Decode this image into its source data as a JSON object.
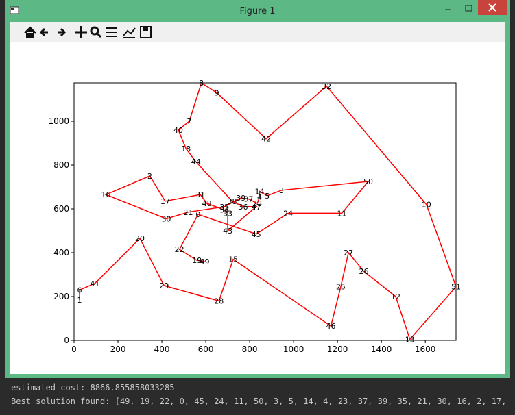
{
  "window": {
    "title": "Figure 1"
  },
  "chart_data": {
    "type": "line",
    "color": "#ff0000",
    "x": [
      595,
      560,
      480,
      565,
      830,
      975,
      1220,
      1340,
      945,
      880,
      845,
      845,
      835,
      795,
      760,
      685,
      520,
      420,
      145,
      345,
      415,
      575,
      605,
      685,
      700,
      700,
      830,
      770,
      720,
      555,
      510,
      475,
      525,
      580,
      650,
      875,
      1150,
      1605,
      1740,
      1530,
      1465,
      1320,
      1250,
      1215,
      1170,
      725,
      660,
      410,
      300,
      95,
      25,
      25
    ],
    "y": [
      360,
      365,
      415,
      575,
      485,
      580,
      580,
      725,
      685,
      660,
      680,
      655,
      625,
      645,
      650,
      610,
      585,
      555,
      665,
      750,
      635,
      665,
      625,
      595,
      580,
      500,
      610,
      610,
      635,
      815,
      875,
      960,
      1000,
      1175,
      1130,
      920,
      1160,
      620,
      245,
      5,
      200,
      315,
      400,
      245,
      65,
      370,
      180,
      250,
      465,
      260,
      230,
      185
    ],
    "point_labels": [
      "49",
      "19",
      "22",
      "0",
      "45",
      "24",
      "11",
      "50",
      "3",
      "5",
      "14",
      "4",
      "23",
      "37",
      "39",
      "35",
      "21",
      "30",
      "16",
      "2",
      "17",
      "31",
      "48",
      "34",
      "33",
      "43",
      "47",
      "36",
      "38",
      "44",
      "18",
      "40",
      "7",
      "8",
      "9",
      "42",
      "32",
      "10",
      "51",
      "13",
      "12",
      "26",
      "27",
      "25",
      "46",
      "15",
      "28",
      "29",
      "20",
      "41",
      "6",
      "1"
    ],
    "xlim": [
      0,
      1740
    ],
    "ylim": [
      0,
      1175
    ],
    "xticks": [
      0,
      200,
      400,
      600,
      800,
      1000,
      1200,
      1400,
      1600
    ],
    "yticks": [
      0,
      200,
      400,
      600,
      800,
      1000
    ]
  },
  "console": [
    "estimated cost: 8866.855858033285",
    "Best solution found: [49, 19, 22, 0, 45, 24, 11, 50, 3, 5, 14, 4, 23, 37, 39, 35, 21, 30, 16, 2, 17,"
  ]
}
